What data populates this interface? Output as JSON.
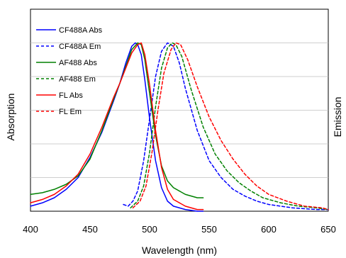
{
  "chart_data": {
    "type": "line",
    "xlabel": "Wavelength (nm)",
    "ylabel_left": "Absorption",
    "ylabel_right": "Emission",
    "xlim": [
      400,
      650
    ],
    "ylim": [
      0,
      1.2
    ],
    "xticks": [
      "400",
      "450",
      "500",
      "550",
      "600",
      "650"
    ],
    "grid": true,
    "legend_position": "top-left",
    "series": [
      {
        "name": "CF488A Abs",
        "color": "#0000ff",
        "dash": "solid",
        "points": [
          [
            400,
            0.03
          ],
          [
            410,
            0.05
          ],
          [
            420,
            0.08
          ],
          [
            430,
            0.13
          ],
          [
            440,
            0.2
          ],
          [
            450,
            0.32
          ],
          [
            460,
            0.47
          ],
          [
            470,
            0.66
          ],
          [
            475,
            0.76
          ],
          [
            480,
            0.88
          ],
          [
            485,
            0.98
          ],
          [
            488,
            1.0
          ],
          [
            490,
            0.99
          ],
          [
            493,
            0.93
          ],
          [
            496,
            0.78
          ],
          [
            500,
            0.55
          ],
          [
            505,
            0.3
          ],
          [
            510,
            0.14
          ],
          [
            515,
            0.06
          ],
          [
            520,
            0.03
          ],
          [
            530,
            0.01
          ],
          [
            540,
            0.0
          ],
          [
            545,
            0.0
          ]
        ]
      },
      {
        "name": "CF488A Em",
        "color": "#0000ff",
        "dash": "dashed",
        "points": [
          [
            478,
            0.04
          ],
          [
            482,
            0.03
          ],
          [
            486,
            0.06
          ],
          [
            490,
            0.12
          ],
          [
            495,
            0.3
          ],
          [
            500,
            0.55
          ],
          [
            505,
            0.8
          ],
          [
            510,
            0.95
          ],
          [
            515,
            1.0
          ],
          [
            520,
            0.98
          ],
          [
            525,
            0.88
          ],
          [
            530,
            0.73
          ],
          [
            540,
            0.48
          ],
          [
            550,
            0.3
          ],
          [
            560,
            0.2
          ],
          [
            570,
            0.13
          ],
          [
            580,
            0.09
          ],
          [
            590,
            0.06
          ],
          [
            600,
            0.04
          ],
          [
            620,
            0.02
          ],
          [
            640,
            0.01
          ],
          [
            650,
            0.01
          ]
        ]
      },
      {
        "name": "AF488 Abs",
        "color": "#008000",
        "dash": "solid",
        "points": [
          [
            400,
            0.1
          ],
          [
            410,
            0.11
          ],
          [
            420,
            0.13
          ],
          [
            430,
            0.16
          ],
          [
            440,
            0.21
          ],
          [
            450,
            0.31
          ],
          [
            460,
            0.48
          ],
          [
            470,
            0.67
          ],
          [
            475,
            0.76
          ],
          [
            480,
            0.86
          ],
          [
            485,
            0.96
          ],
          [
            490,
            1.0
          ],
          [
            493,
            0.99
          ],
          [
            496,
            0.9
          ],
          [
            500,
            0.7
          ],
          [
            505,
            0.45
          ],
          [
            510,
            0.27
          ],
          [
            515,
            0.18
          ],
          [
            520,
            0.14
          ],
          [
            530,
            0.1
          ],
          [
            540,
            0.08
          ],
          [
            545,
            0.08
          ]
        ]
      },
      {
        "name": "AF488 Em",
        "color": "#008000",
        "dash": "dashed",
        "points": [
          [
            484,
            0.02
          ],
          [
            490,
            0.06
          ],
          [
            495,
            0.15
          ],
          [
            500,
            0.35
          ],
          [
            505,
            0.62
          ],
          [
            510,
            0.85
          ],
          [
            515,
            0.97
          ],
          [
            519,
            1.0
          ],
          [
            522,
            0.99
          ],
          [
            527,
            0.92
          ],
          [
            535,
            0.72
          ],
          [
            545,
            0.5
          ],
          [
            555,
            0.34
          ],
          [
            565,
            0.24
          ],
          [
            575,
            0.17
          ],
          [
            585,
            0.12
          ],
          [
            595,
            0.08
          ],
          [
            610,
            0.05
          ],
          [
            625,
            0.03
          ],
          [
            640,
            0.02
          ],
          [
            650,
            0.01
          ]
        ]
      },
      {
        "name": "FL Abs",
        "color": "#ff0000",
        "dash": "solid",
        "points": [
          [
            400,
            0.05
          ],
          [
            410,
            0.07
          ],
          [
            420,
            0.1
          ],
          [
            430,
            0.15
          ],
          [
            440,
            0.22
          ],
          [
            450,
            0.34
          ],
          [
            460,
            0.5
          ],
          [
            470,
            0.68
          ],
          [
            475,
            0.76
          ],
          [
            480,
            0.85
          ],
          [
            485,
            0.94
          ],
          [
            490,
            0.99
          ],
          [
            493,
            1.0
          ],
          [
            496,
            0.93
          ],
          [
            500,
            0.75
          ],
          [
            505,
            0.48
          ],
          [
            510,
            0.26
          ],
          [
            515,
            0.13
          ],
          [
            520,
            0.07
          ],
          [
            530,
            0.03
          ],
          [
            540,
            0.01
          ],
          [
            545,
            0.01
          ]
        ]
      },
      {
        "name": "FL Em",
        "color": "#ff0000",
        "dash": "dashed",
        "points": [
          [
            486,
            0.02
          ],
          [
            492,
            0.06
          ],
          [
            497,
            0.15
          ],
          [
            502,
            0.35
          ],
          [
            507,
            0.6
          ],
          [
            512,
            0.82
          ],
          [
            518,
            0.96
          ],
          [
            522,
            1.0
          ],
          [
            526,
            0.99
          ],
          [
            532,
            0.9
          ],
          [
            540,
            0.74
          ],
          [
            550,
            0.56
          ],
          [
            560,
            0.42
          ],
          [
            570,
            0.31
          ],
          [
            580,
            0.22
          ],
          [
            590,
            0.15
          ],
          [
            600,
            0.1
          ],
          [
            615,
            0.06
          ],
          [
            630,
            0.03
          ],
          [
            645,
            0.02
          ],
          [
            650,
            0.01
          ]
        ]
      }
    ]
  }
}
